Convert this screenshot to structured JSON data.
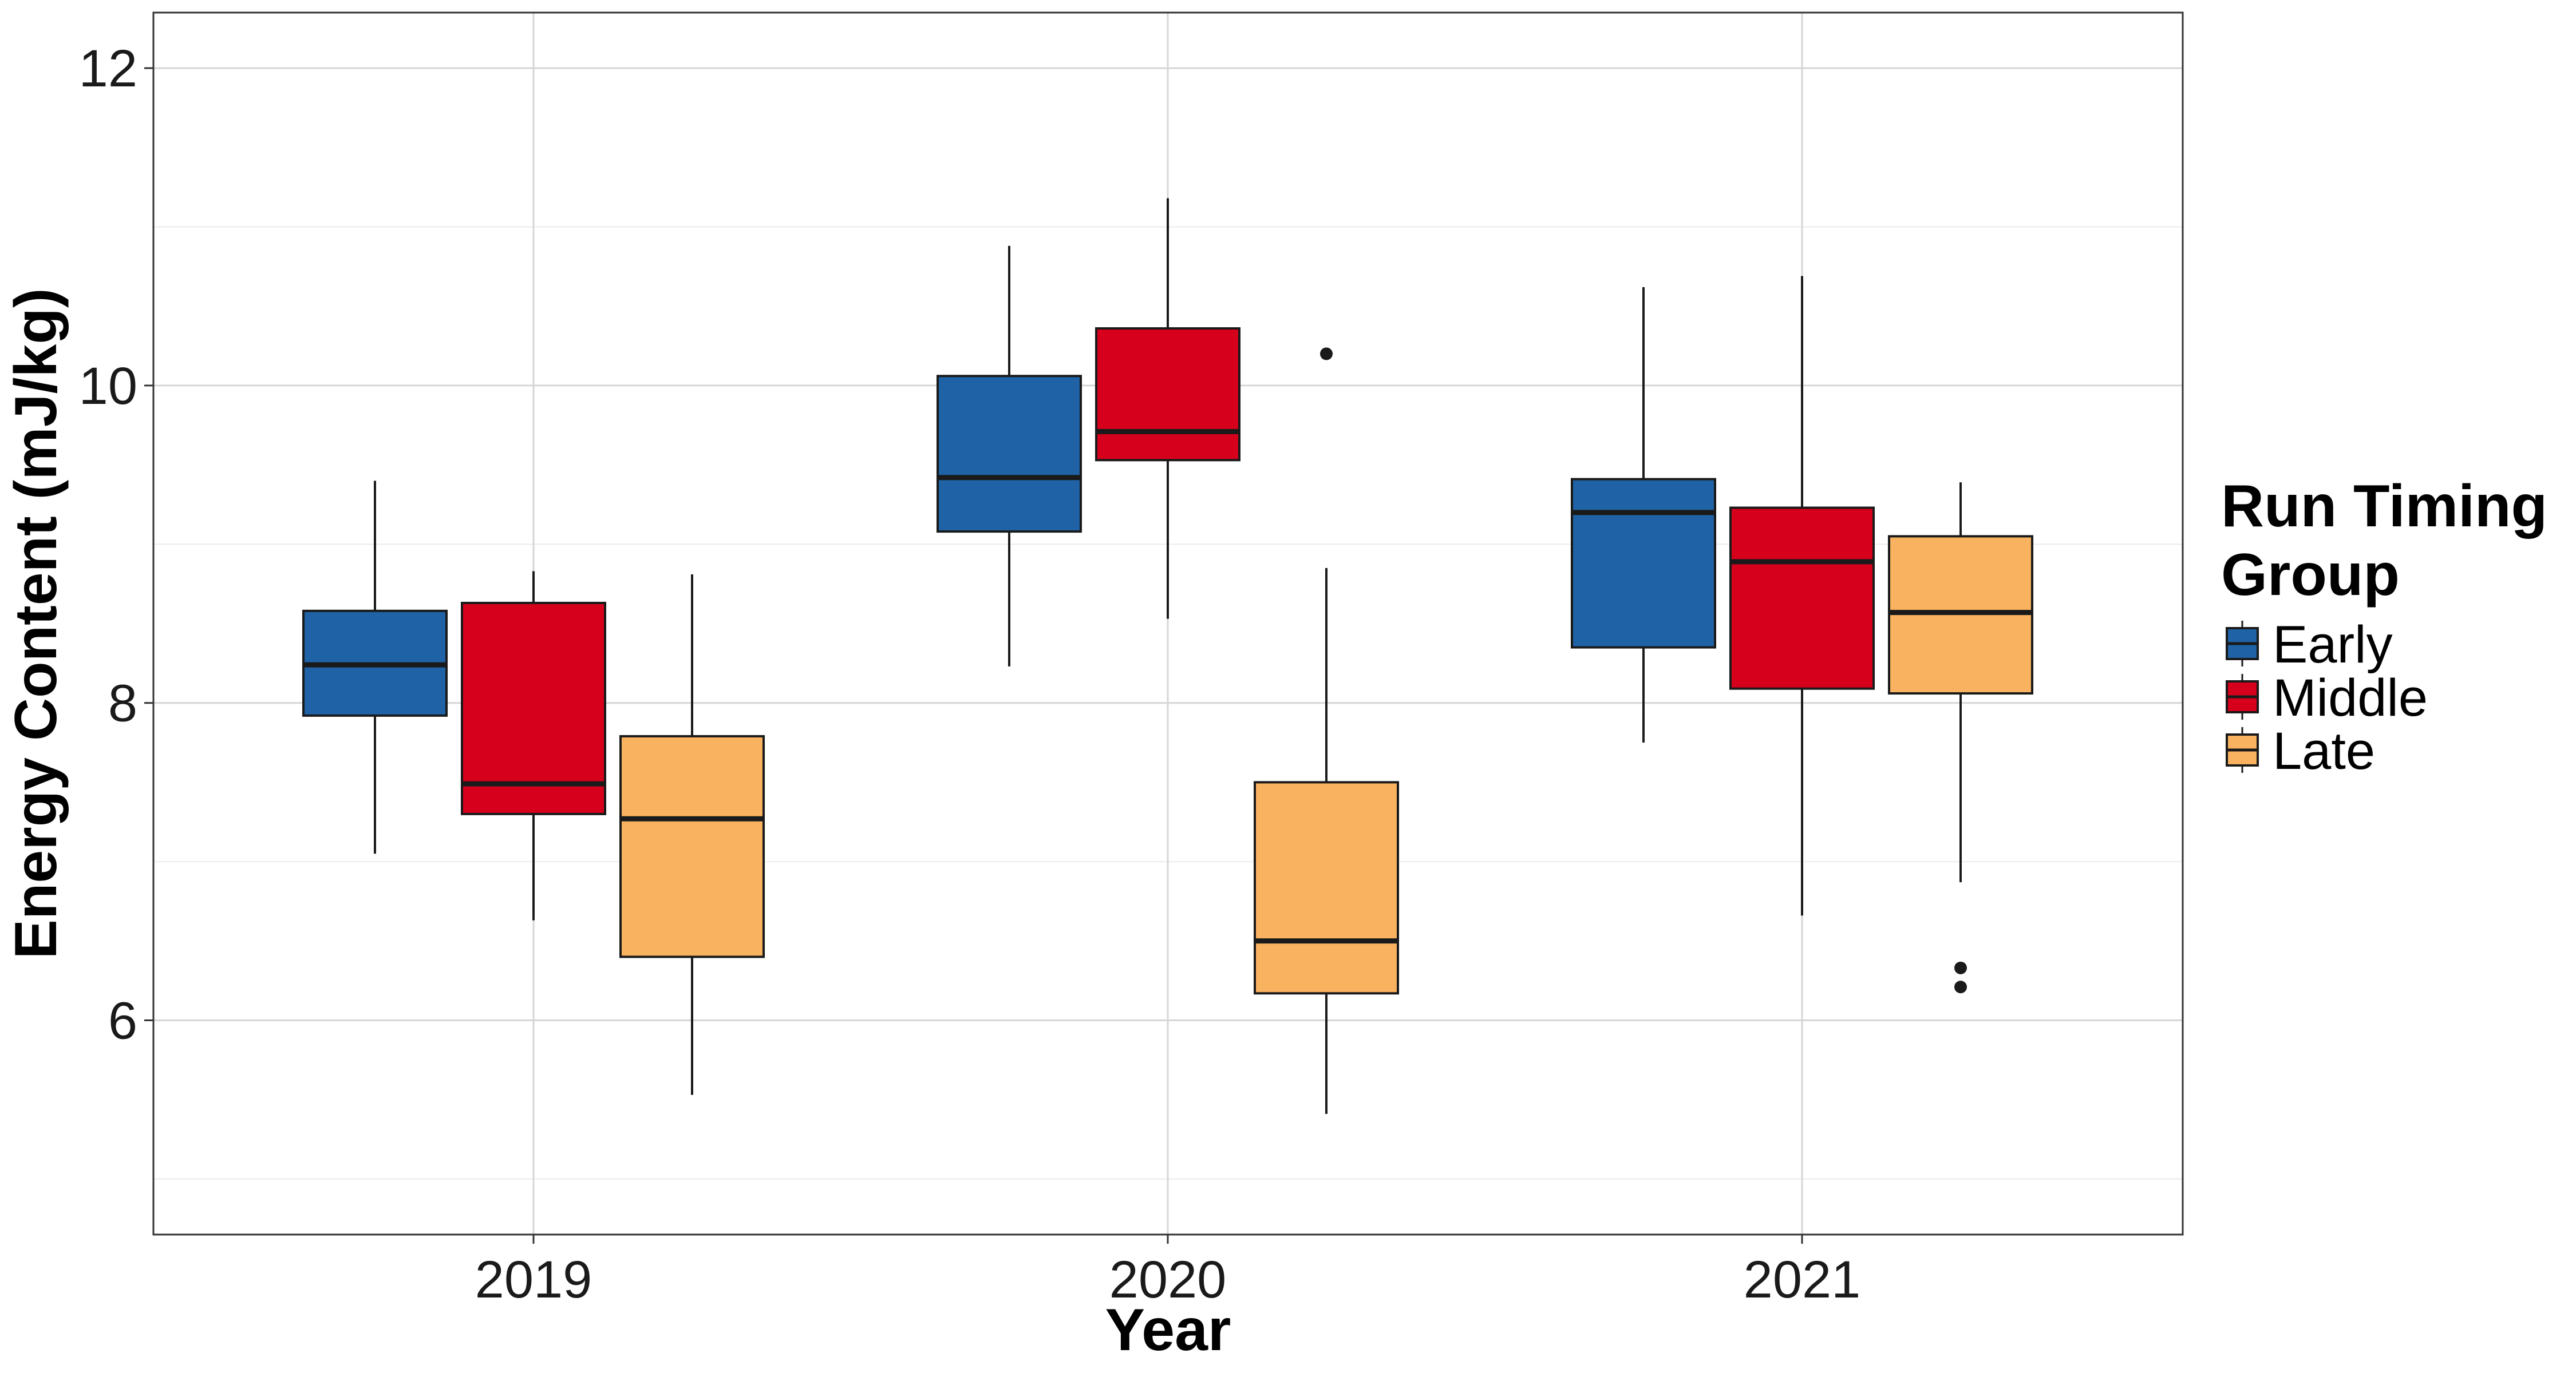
{
  "chart_data": {
    "type": "boxplot",
    "title": "",
    "xlabel": "Year",
    "ylabel": "Energy Content (mJ/kg)",
    "categories": [
      "2019",
      "2020",
      "2021"
    ],
    "ylim": [
      4.65,
      12.35
    ],
    "yticks": [
      6,
      8,
      10,
      12
    ],
    "yticks_minor": [
      5,
      7,
      9,
      11
    ],
    "grid": true,
    "legend": {
      "title_lines": [
        "Run Timing",
        "Group"
      ],
      "position": "right"
    },
    "series": [
      {
        "name": "Early",
        "color": "#1f63a6",
        "boxes": [
          {
            "category": "2019",
            "min": 7.05,
            "q1": 7.92,
            "median": 8.24,
            "q3": 8.58,
            "max": 9.4,
            "outliers": []
          },
          {
            "category": "2020",
            "min": 8.23,
            "q1": 9.08,
            "median": 9.42,
            "q3": 10.06,
            "max": 10.88,
            "outliers": []
          },
          {
            "category": "2021",
            "min": 7.75,
            "q1": 8.35,
            "median": 9.2,
            "q3": 9.41,
            "max": 10.62,
            "outliers": []
          }
        ]
      },
      {
        "name": "Middle",
        "color": "#d7001c",
        "boxes": [
          {
            "category": "2019",
            "min": 6.63,
            "q1": 7.3,
            "median": 7.49,
            "q3": 8.63,
            "max": 8.83,
            "outliers": []
          },
          {
            "category": "2020",
            "min": 8.53,
            "q1": 9.53,
            "median": 9.71,
            "q3": 10.36,
            "max": 11.18,
            "outliers": []
          },
          {
            "category": "2021",
            "min": 6.66,
            "q1": 8.09,
            "median": 8.89,
            "q3": 9.23,
            "max": 10.69,
            "outliers": []
          }
        ]
      },
      {
        "name": "Late",
        "color": "#f9b25f",
        "boxes": [
          {
            "category": "2019",
            "min": 5.53,
            "q1": 6.4,
            "median": 7.27,
            "q3": 7.79,
            "max": 8.81,
            "outliers": []
          },
          {
            "category": "2020",
            "min": 5.41,
            "q1": 6.17,
            "median": 6.5,
            "q3": 7.5,
            "max": 8.85,
            "outliers": [
              10.2
            ]
          },
          {
            "category": "2021",
            "min": 6.87,
            "q1": 8.06,
            "median": 8.57,
            "q3": 9.05,
            "max": 9.39,
            "outliers": [
              6.33,
              6.21
            ]
          }
        ]
      }
    ]
  }
}
